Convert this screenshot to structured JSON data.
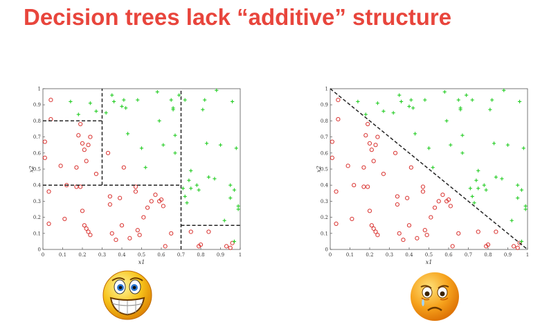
{
  "slide": {
    "title": "Decision trees lack “additive” structure"
  },
  "colors": {
    "title": "#e8453c",
    "class_o": "#d9322f",
    "class_plus": "#22cc22",
    "boundary": "#222222"
  },
  "icons": {
    "left_face": "grinning-face-icon",
    "right_face": "sad-face-icon"
  },
  "chart_data": [
    {
      "type": "scatter",
      "title": "",
      "xlabel": "x1",
      "ylabel": "x2",
      "xlim": [
        0,
        1
      ],
      "ylim": [
        0,
        1
      ],
      "xticks": [
        "0",
        "0.1",
        "0.2",
        "0.3",
        "0.4",
        "0.5",
        "0.6",
        "0.7",
        "0.8",
        "0.9",
        "1"
      ],
      "yticks": [
        "0",
        "0.1",
        "0.2",
        "0.3",
        "0.4",
        "0.5",
        "0.6",
        "0.7",
        "0.8",
        "0.9",
        "1"
      ],
      "boundary": "axis-aligned splits",
      "segments": [
        [
          [
            0.7,
            0
          ],
          [
            0.7,
            1
          ]
        ],
        [
          [
            0.3,
            0.4
          ],
          [
            0.3,
            1
          ]
        ],
        [
          [
            0,
            0.4
          ],
          [
            0.7,
            0.4
          ]
        ],
        [
          [
            0,
            0.8
          ],
          [
            0.3,
            0.8
          ]
        ],
        [
          [
            0.7,
            0.15
          ],
          [
            1,
            0.15
          ]
        ]
      ]
    },
    {
      "type": "scatter",
      "title": "",
      "xlabel": "x1",
      "ylabel": "x2",
      "xlim": [
        0,
        1
      ],
      "ylim": [
        0,
        1
      ],
      "xticks": [
        "0",
        "0.1",
        "0.2",
        "0.3",
        "0.4",
        "0.5",
        "0.6",
        "0.7",
        "0.8",
        "0.9",
        "1"
      ],
      "yticks": [
        "0",
        "0.1",
        "0.2",
        "0.3",
        "0.4",
        "0.5",
        "0.6",
        "0.7",
        "0.8",
        "0.9",
        "1"
      ],
      "boundary": "diagonal x1 + x2 = 1",
      "segments": [
        [
          [
            0,
            1
          ],
          [
            1,
            0
          ]
        ]
      ]
    }
  ],
  "points": {
    "circles": [
      [
        0.04,
        0.93
      ],
      [
        0.04,
        0.81
      ],
      [
        0.01,
        0.67
      ],
      [
        0.01,
        0.57
      ],
      [
        0.03,
        0.36
      ],
      [
        0.03,
        0.16
      ],
      [
        0.09,
        0.52
      ],
      [
        0.11,
        0.19
      ],
      [
        0.12,
        0.4
      ],
      [
        0.17,
        0.39
      ],
      [
        0.17,
        0.51
      ],
      [
        0.18,
        0.71
      ],
      [
        0.19,
        0.78
      ],
      [
        0.2,
        0.66
      ],
      [
        0.21,
        0.62
      ],
      [
        0.22,
        0.55
      ],
      [
        0.23,
        0.65
      ],
      [
        0.24,
        0.7
      ],
      [
        0.19,
        0.39
      ],
      [
        0.2,
        0.24
      ],
      [
        0.21,
        0.15
      ],
      [
        0.22,
        0.13
      ],
      [
        0.23,
        0.11
      ],
      [
        0.24,
        0.09
      ],
      [
        0.27,
        0.47
      ],
      [
        0.33,
        0.6
      ],
      [
        0.34,
        0.33
      ],
      [
        0.34,
        0.28
      ],
      [
        0.35,
        0.1
      ],
      [
        0.37,
        0.06
      ],
      [
        0.39,
        0.32
      ],
      [
        0.4,
        0.15
      ],
      [
        0.41,
        0.51
      ],
      [
        0.44,
        0.07
      ],
      [
        0.47,
        0.39
      ],
      [
        0.47,
        0.36
      ],
      [
        0.48,
        0.12
      ],
      [
        0.49,
        0.09
      ],
      [
        0.51,
        0.2
      ],
      [
        0.53,
        0.26
      ],
      [
        0.55,
        0.3
      ],
      [
        0.57,
        0.34
      ],
      [
        0.59,
        0.3
      ],
      [
        0.6,
        0.31
      ],
      [
        0.61,
        0.27
      ],
      [
        0.62,
        0.02
      ],
      [
        0.65,
        0.1
      ],
      [
        0.75,
        0.11
      ],
      [
        0.79,
        0.02
      ],
      [
        0.8,
        0.03
      ],
      [
        0.84,
        0.11
      ],
      [
        0.93,
        0.02
      ],
      [
        0.95,
        0.01
      ],
      [
        0.96,
        0.04
      ]
    ],
    "pluses": [
      [
        0.14,
        0.92
      ],
      [
        0.18,
        0.84
      ],
      [
        0.24,
        0.91
      ],
      [
        0.27,
        0.86
      ],
      [
        0.32,
        0.85
      ],
      [
        0.35,
        0.96
      ],
      [
        0.36,
        0.92
      ],
      [
        0.4,
        0.89
      ],
      [
        0.41,
        0.93
      ],
      [
        0.42,
        0.88
      ],
      [
        0.43,
        0.72
      ],
      [
        0.48,
        0.93
      ],
      [
        0.5,
        0.63
      ],
      [
        0.52,
        0.51
      ],
      [
        0.58,
        0.98
      ],
      [
        0.59,
        0.8
      ],
      [
        0.61,
        0.65
      ],
      [
        0.65,
        0.93
      ],
      [
        0.66,
        0.88
      ],
      [
        0.66,
        0.87
      ],
      [
        0.67,
        0.71
      ],
      [
        0.67,
        0.6
      ],
      [
        0.69,
        0.96
      ],
      [
        0.72,
        0.93
      ],
      [
        0.71,
        0.38
      ],
      [
        0.72,
        0.33
      ],
      [
        0.73,
        0.29
      ],
      [
        0.74,
        0.43
      ],
      [
        0.75,
        0.38
      ],
      [
        0.75,
        0.49
      ],
      [
        0.78,
        0.4
      ],
      [
        0.79,
        0.37
      ],
      [
        0.81,
        0.87
      ],
      [
        0.82,
        0.93
      ],
      [
        0.83,
        0.66
      ],
      [
        0.84,
        0.45
      ],
      [
        0.87,
        0.44
      ],
      [
        0.88,
        0.99
      ],
      [
        0.9,
        0.65
      ],
      [
        0.92,
        0.18
      ],
      [
        0.95,
        0.4
      ],
      [
        0.97,
        0.37
      ],
      [
        0.96,
        0.92
      ],
      [
        0.98,
        0.63
      ],
      [
        0.99,
        0.27
      ],
      [
        0.99,
        0.25
      ],
      [
        0.97,
        0.05
      ],
      [
        0.95,
        0.32
      ]
    ]
  }
}
